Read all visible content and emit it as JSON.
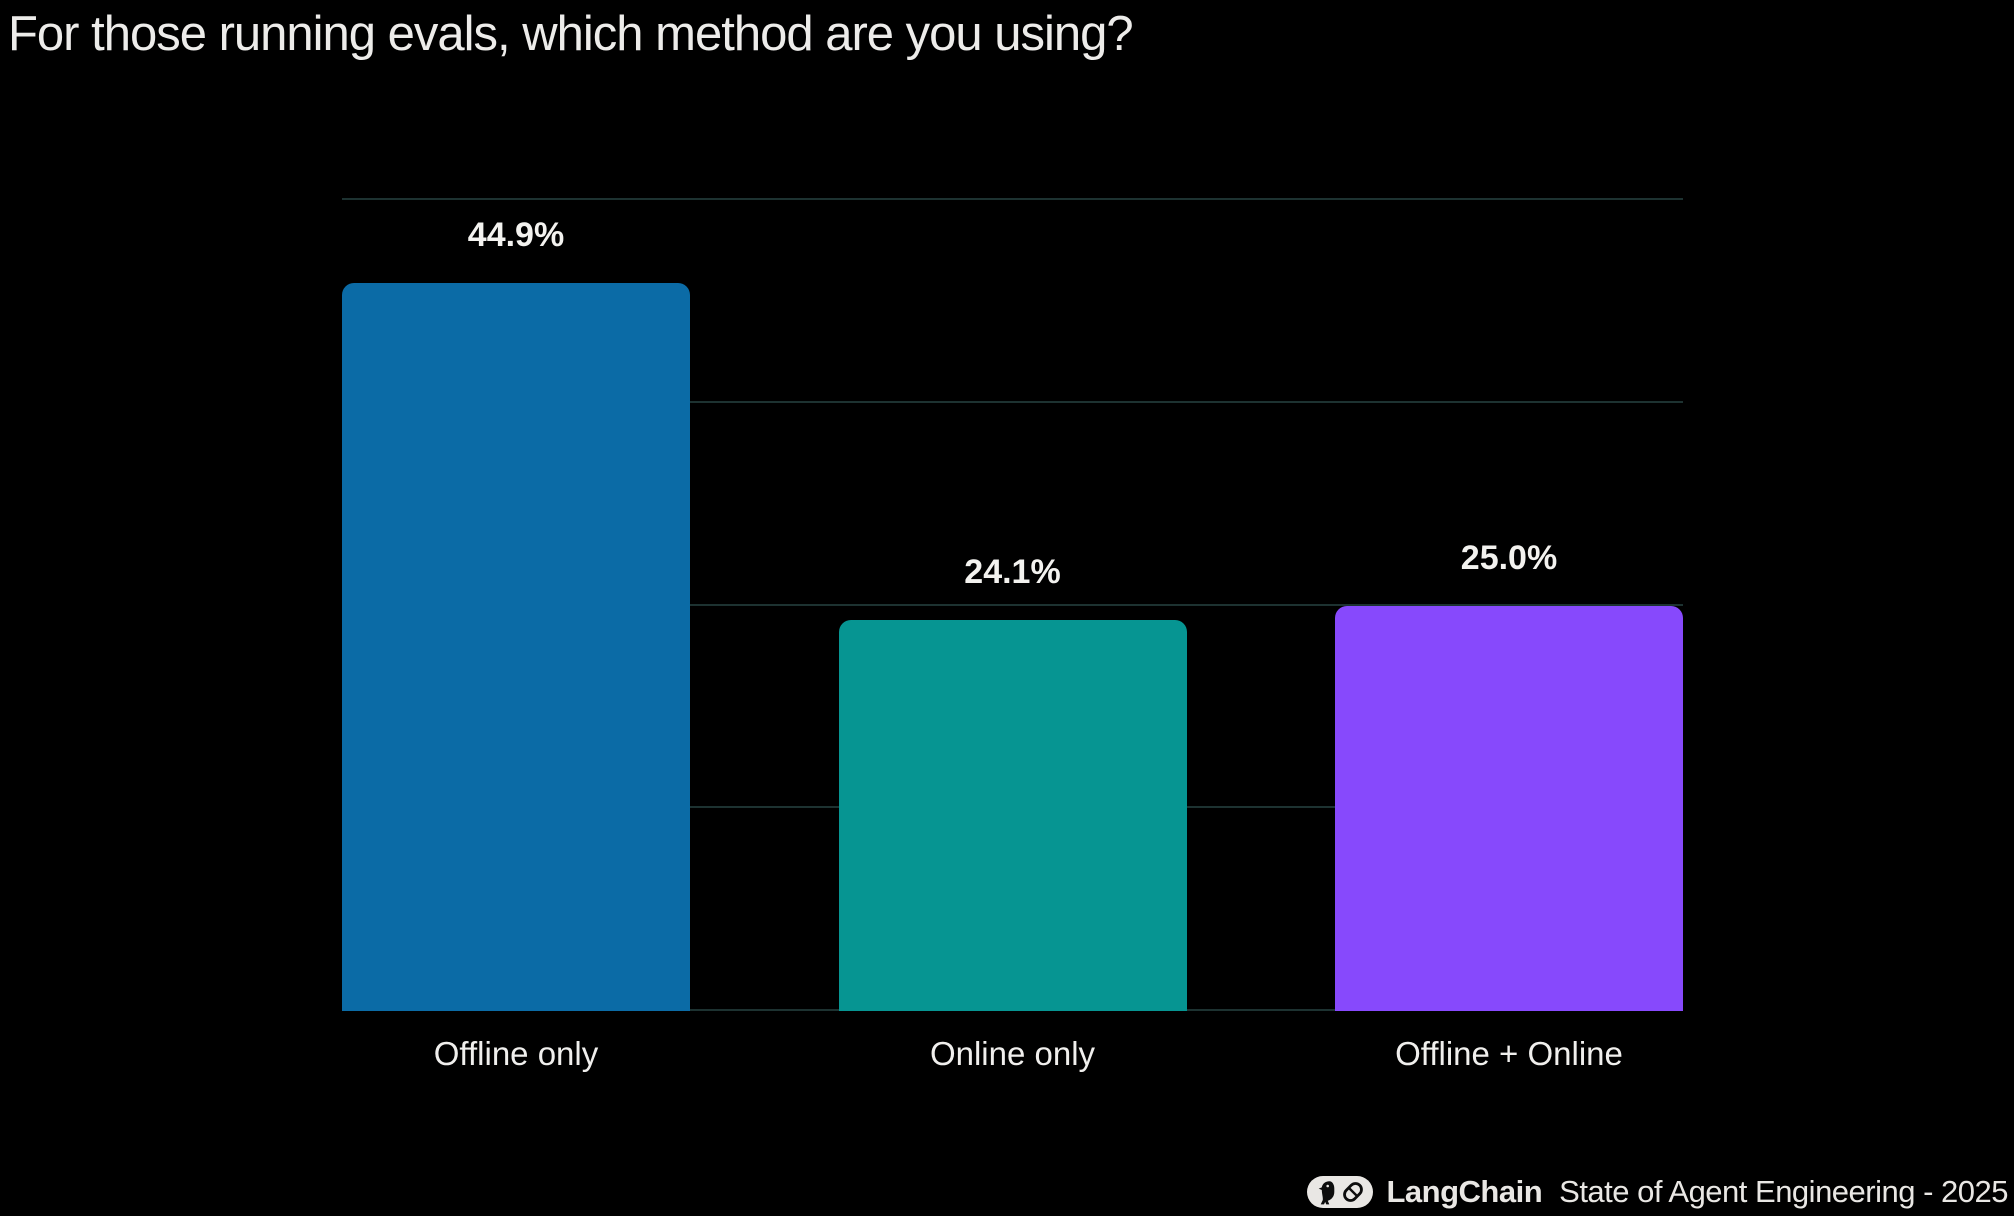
{
  "title": "For those running evals, which method are you using?",
  "chart_data": {
    "type": "bar",
    "title": "For those running evals, which method are you using?",
    "categories": [
      "Offline only",
      "Online only",
      "Offline + Online"
    ],
    "values": [
      44.9,
      24.1,
      25.0
    ],
    "value_labels": [
      "44.9%",
      "24.1%",
      "25.0%"
    ],
    "bar_colors": [
      "#0b6ba6",
      "#069592",
      "#8749fc"
    ],
    "xlabel": "",
    "ylabel": "",
    "ylim": [
      0,
      50
    ],
    "grid_step": 12.5,
    "grid": true,
    "gridline_color": "#1d3231",
    "y_tick_labels_shown": false,
    "legend_position": "none",
    "background_color": "#000000",
    "text_color": "#f0efed"
  },
  "footer": {
    "brand": "LangChain",
    "report": "State of Agent Engineering - 2025",
    "logo_icon": "langchain-parrot-chain-link-logo",
    "logo_bg_color": "#e9e7e4",
    "logo_glyph_color": "#0d0d0d"
  }
}
